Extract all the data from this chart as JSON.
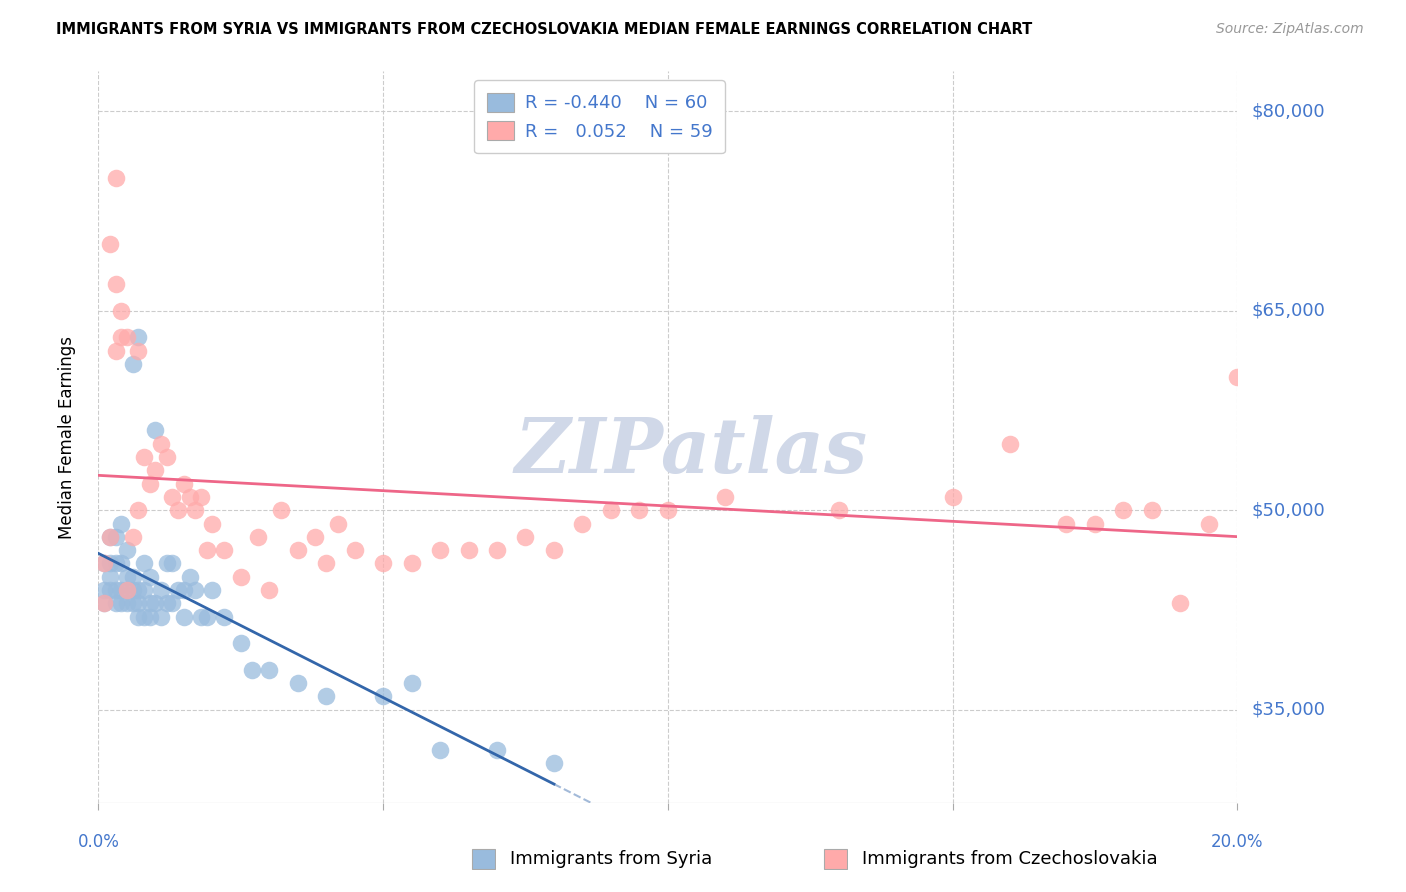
{
  "title": "IMMIGRANTS FROM SYRIA VS IMMIGRANTS FROM CZECHOSLOVAKIA MEDIAN FEMALE EARNINGS CORRELATION CHART",
  "source": "Source: ZipAtlas.com",
  "ylabel": "Median Female Earnings",
  "yticks": [
    35000,
    50000,
    65000,
    80000
  ],
  "ytick_labels": [
    "$35,000",
    "$50,000",
    "$65,000",
    "$80,000"
  ],
  "xlim": [
    0.0,
    0.2
  ],
  "ylim": [
    28000,
    83000
  ],
  "color_blue": "#99BBDD",
  "color_pink": "#FFAAAA",
  "color_blue_line": "#3366AA",
  "color_pink_line": "#EE6688",
  "color_axis_labels": "#4477CC",
  "color_grid": "#CCCCCC",
  "watermark_color": "#D0D8E8",
  "syria_x": [
    0.001,
    0.001,
    0.001,
    0.002,
    0.002,
    0.002,
    0.002,
    0.003,
    0.003,
    0.003,
    0.003,
    0.004,
    0.004,
    0.004,
    0.004,
    0.005,
    0.005,
    0.005,
    0.005,
    0.006,
    0.006,
    0.006,
    0.006,
    0.007,
    0.007,
    0.007,
    0.007,
    0.008,
    0.008,
    0.008,
    0.009,
    0.009,
    0.009,
    0.01,
    0.01,
    0.011,
    0.011,
    0.012,
    0.012,
    0.013,
    0.013,
    0.014,
    0.015,
    0.015,
    0.016,
    0.017,
    0.018,
    0.019,
    0.02,
    0.022,
    0.025,
    0.027,
    0.03,
    0.035,
    0.04,
    0.05,
    0.055,
    0.06,
    0.07,
    0.08
  ],
  "syria_y": [
    43000,
    44000,
    46000,
    44000,
    45000,
    46000,
    48000,
    43000,
    44000,
    46000,
    48000,
    43000,
    44000,
    46000,
    49000,
    43000,
    44000,
    45000,
    47000,
    43000,
    44000,
    45000,
    61000,
    42000,
    43000,
    44000,
    63000,
    42000,
    44000,
    46000,
    42000,
    43000,
    45000,
    43000,
    56000,
    42000,
    44000,
    43000,
    46000,
    43000,
    46000,
    44000,
    42000,
    44000,
    45000,
    44000,
    42000,
    42000,
    44000,
    42000,
    40000,
    38000,
    38000,
    37000,
    36000,
    36000,
    37000,
    32000,
    32000,
    31000
  ],
  "czech_x": [
    0.001,
    0.001,
    0.002,
    0.002,
    0.003,
    0.003,
    0.004,
    0.004,
    0.005,
    0.005,
    0.006,
    0.007,
    0.007,
    0.008,
    0.009,
    0.01,
    0.011,
    0.012,
    0.013,
    0.014,
    0.015,
    0.016,
    0.017,
    0.018,
    0.019,
    0.02,
    0.022,
    0.025,
    0.028,
    0.03,
    0.032,
    0.035,
    0.038,
    0.04,
    0.042,
    0.045,
    0.05,
    0.055,
    0.06,
    0.065,
    0.07,
    0.075,
    0.08,
    0.085,
    0.09,
    0.095,
    0.1,
    0.11,
    0.13,
    0.15,
    0.16,
    0.17,
    0.175,
    0.18,
    0.185,
    0.19,
    0.195,
    0.2,
    0.003
  ],
  "czech_y": [
    43000,
    46000,
    48000,
    70000,
    62000,
    67000,
    63000,
    65000,
    44000,
    63000,
    48000,
    50000,
    62000,
    54000,
    52000,
    53000,
    55000,
    54000,
    51000,
    50000,
    52000,
    51000,
    50000,
    51000,
    47000,
    49000,
    47000,
    45000,
    48000,
    44000,
    50000,
    47000,
    48000,
    46000,
    49000,
    47000,
    46000,
    46000,
    47000,
    47000,
    47000,
    48000,
    47000,
    49000,
    50000,
    50000,
    50000,
    51000,
    50000,
    51000,
    55000,
    49000,
    49000,
    50000,
    50000,
    43000,
    49000,
    60000,
    75000
  ],
  "xticks": [
    0.0,
    0.05,
    0.1,
    0.15,
    0.2
  ]
}
